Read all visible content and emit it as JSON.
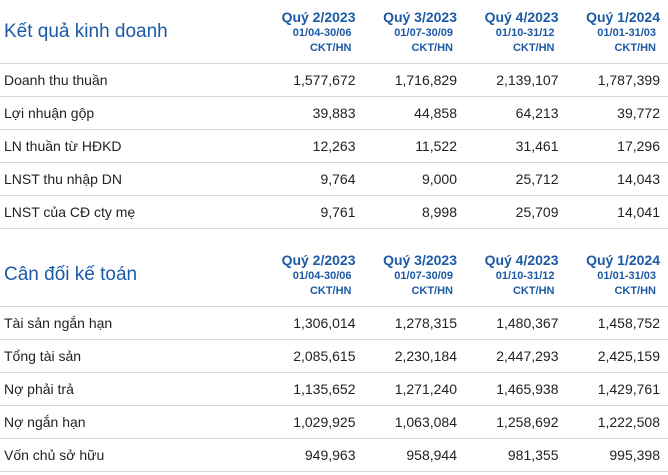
{
  "business": {
    "title": "Kết quả kinh doanh",
    "columns": [
      {
        "quarter": "Quý 2/2023",
        "dates": "01/04-30/06",
        "exchange": "CKT/HN"
      },
      {
        "quarter": "Quý 3/2023",
        "dates": "01/07-30/09",
        "exchange": "CKT/HN"
      },
      {
        "quarter": "Quý 4/2023",
        "dates": "01/10-31/12",
        "exchange": "CKT/HN"
      },
      {
        "quarter": "Quý 1/2024",
        "dates": "01/01-31/03",
        "exchange": "CKT/HN"
      }
    ],
    "rows": [
      {
        "label": "Doanh thu thuần",
        "values": [
          "1,577,672",
          "1,716,829",
          "2,139,107",
          "1,787,399"
        ]
      },
      {
        "label": "Lợi nhuận gộp",
        "values": [
          "39,883",
          "44,858",
          "64,213",
          "39,772"
        ]
      },
      {
        "label": "LN thuần từ HĐKD",
        "values": [
          "12,263",
          "11,522",
          "31,461",
          "17,296"
        ]
      },
      {
        "label": "LNST thu nhập DN",
        "values": [
          "9,764",
          "9,000",
          "25,712",
          "14,043"
        ]
      },
      {
        "label": "LNST của CĐ cty mẹ",
        "values": [
          "9,761",
          "8,998",
          "25,709",
          "14,041"
        ]
      }
    ]
  },
  "balance": {
    "title": "Cân đối kế toán",
    "columns": [
      {
        "quarter": "Quý 2/2023",
        "dates": "01/04-30/06",
        "exchange": "CKT/HN"
      },
      {
        "quarter": "Quý 3/2023",
        "dates": "01/07-30/09",
        "exchange": "CKT/HN"
      },
      {
        "quarter": "Quý 4/2023",
        "dates": "01/10-31/12",
        "exchange": "CKT/HN"
      },
      {
        "quarter": "Quý 1/2024",
        "dates": "01/01-31/03",
        "exchange": "CKT/HN"
      }
    ],
    "rows": [
      {
        "label": "Tài sản ngắn hạn",
        "values": [
          "1,306,014",
          "1,278,315",
          "1,480,367",
          "1,458,752"
        ]
      },
      {
        "label": "Tổng tài sản",
        "values": [
          "2,085,615",
          "2,230,184",
          "2,447,293",
          "2,425,159"
        ]
      },
      {
        "label": "Nợ phải trả",
        "values": [
          "1,135,652",
          "1,271,240",
          "1,465,938",
          "1,429,761"
        ]
      },
      {
        "label": "Nợ ngắn hạn",
        "values": [
          "1,029,925",
          "1,063,084",
          "1,258,692",
          "1,222,508"
        ]
      },
      {
        "label": "Vốn chủ sở hữu",
        "values": [
          "949,963",
          "958,944",
          "981,355",
          "995,398"
        ]
      }
    ]
  }
}
